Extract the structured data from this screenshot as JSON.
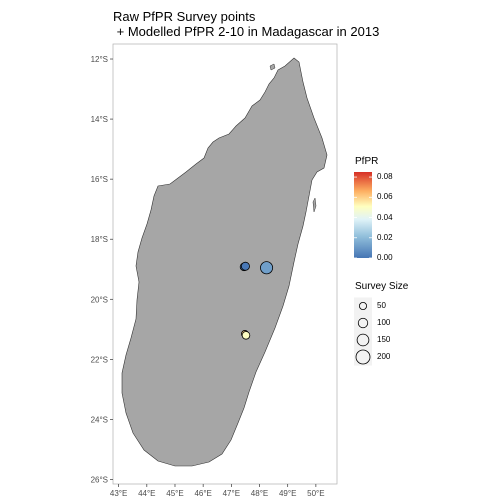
{
  "title_line1": "Raw PfPR Survey points",
  "title_line2": " + Modelled PfPR 2-10 in Madagascar in 2013",
  "colors": {
    "land": "#a6a6a6",
    "land_stroke": "#333333",
    "panel_border": "#b0b0b0",
    "scale_low": "#4575b4",
    "scale_mid": "#ffffbf",
    "scale_high": "#d73027"
  },
  "chart_data": {
    "type": "scatter",
    "x_ticks": [
      "43°E",
      "44°E",
      "45°E",
      "46°E",
      "47°E",
      "48°E",
      "49°E",
      "50°E"
    ],
    "x_tick_values": [
      43,
      44,
      45,
      46,
      47,
      48,
      49,
      50
    ],
    "y_ticks": [
      "12°S",
      "14°S",
      "16°S",
      "18°S",
      "20°S",
      "22°S",
      "24°S",
      "26°S"
    ],
    "y_tick_values": [
      -12,
      -14,
      -16,
      -18,
      -20,
      -22,
      -24,
      -26
    ],
    "xlim": [
      42.8,
      50.75
    ],
    "ylim": [
      -26.15,
      -11.5
    ],
    "grid": false,
    "points": [
      {
        "lon": 47.45,
        "lat": -18.92,
        "pfpr": 0.002,
        "size": 60
      },
      {
        "lon": 47.5,
        "lat": -18.9,
        "pfpr": 0.001,
        "size": 70
      },
      {
        "lon": 48.25,
        "lat": -18.95,
        "pfpr": 0.012,
        "size": 160
      },
      {
        "lon": 47.48,
        "lat": -21.15,
        "pfpr": 0.06,
        "size": 40
      },
      {
        "lon": 47.52,
        "lat": -21.2,
        "pfpr": 0.05,
        "size": 60
      }
    ],
    "color_legend": {
      "title": "PfPR",
      "min": 0,
      "max": 0.085,
      "breaks": [
        "0.00",
        "0.02",
        "0.04",
        "0.06",
        "0.08"
      ],
      "break_values": [
        0,
        0.02,
        0.04,
        0.06,
        0.08
      ]
    },
    "size_legend": {
      "title": "Survey Size",
      "labels": [
        "50",
        "100",
        "150",
        "200"
      ],
      "values": [
        50,
        100,
        150,
        200
      ]
    }
  }
}
